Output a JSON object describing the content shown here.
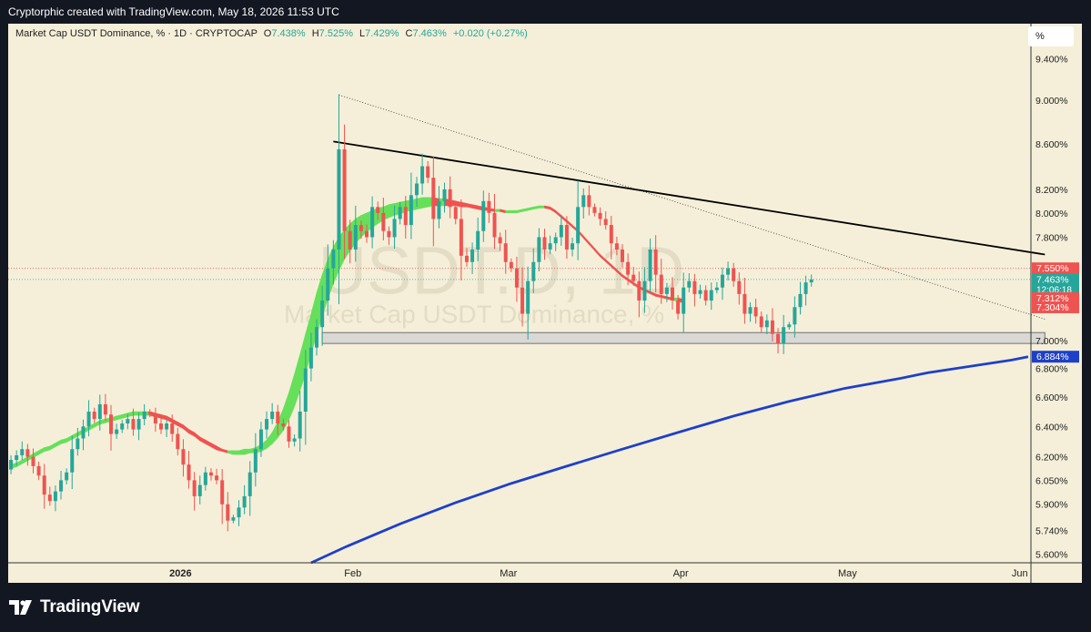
{
  "header": {
    "attribution": "Cryptorphic created with TradingView.com, May 18, 2026 11:53 UTC"
  },
  "legend": {
    "title": "Market Cap USDT Dominance, % · 1D · CRYPTOCAP",
    "o_label": "O",
    "o_value": "7.438%",
    "h_label": "H",
    "h_value": "7.525%",
    "l_label": "L",
    "l_value": "7.429%",
    "c_label": "C",
    "c_value": "7.463%",
    "change": "+0.020 (+0.27%)"
  },
  "watermark": {
    "symbol": "USDT.D, 1D",
    "description": "Market Cap USDT Dominance, %"
  },
  "scale_button": "%",
  "footer": {
    "brand": "TradingView",
    "logo_icon": "tradingview-logo-icon"
  },
  "colors": {
    "background": "#f5efd9",
    "up": "#26a69a",
    "down": "#ef5350",
    "ribbon_up": "#66e05a",
    "ribbon_down": "#ef5350",
    "ma200": "#1e40c8",
    "support_zone": "#d3d3d3",
    "resistance_line": "#000000",
    "current_price": "#26a69a"
  },
  "chart_data": {
    "type": "candlestick",
    "symbol": "USDT.D",
    "timeframe": "1D",
    "y_scale": "log",
    "ylim": [
      5.55,
      9.75
    ],
    "x_range": [
      "2025-12-01",
      "2026-06-03"
    ],
    "y_ticks": [
      "5.600%",
      "5.740%",
      "5.900%",
      "6.050%",
      "6.200%",
      "6.400%",
      "6.600%",
      "6.800%",
      "7.000%",
      "7.800%",
      "8.000%",
      "8.200%",
      "8.600%",
      "9.000%",
      "9.400%"
    ],
    "x_ticks": [
      {
        "date": "2026-01-01",
        "label": "2026",
        "bold": true
      },
      {
        "date": "2026-02-01",
        "label": "Feb"
      },
      {
        "date": "2026-03-01",
        "label": "Mar"
      },
      {
        "date": "2026-04-01",
        "label": "Apr"
      },
      {
        "date": "2026-05-01",
        "label": "May"
      },
      {
        "date": "2026-06-01",
        "label": "Jun"
      }
    ],
    "price_labels": [
      {
        "value": 7.55,
        "text": "7.550%",
        "color": "#ef5350"
      },
      {
        "value": 7.463,
        "text": "7.463%",
        "subtext": "12:06:18",
        "color": "#26a69a"
      },
      {
        "value": 7.312,
        "text": "7.312%",
        "color": "#ef5350"
      },
      {
        "value": 7.304,
        "text": "7.304%",
        "color": "#ef5350"
      },
      {
        "value": 6.884,
        "text": "6.884%",
        "color": "#1e40c8"
      }
    ],
    "closes": [
      6.18,
      6.21,
      6.25,
      6.2,
      6.14,
      6.08,
      5.96,
      5.92,
      5.98,
      6.05,
      6.1,
      6.25,
      6.32,
      6.4,
      6.5,
      6.45,
      6.55,
      6.48,
      6.35,
      6.38,
      6.42,
      6.45,
      6.38,
      6.45,
      6.5,
      6.48,
      6.42,
      6.38,
      6.42,
      6.35,
      6.25,
      6.15,
      6.05,
      5.95,
      6.02,
      6.1,
      6.08,
      6.05,
      5.9,
      5.8,
      5.82,
      5.88,
      5.95,
      6.1,
      6.25,
      6.38,
      6.45,
      6.5,
      6.42,
      6.4,
      6.3,
      6.32,
      6.5,
      6.8,
      6.95,
      7.1,
      7.3,
      7.55,
      7.7,
      8.55,
      7.85,
      7.7,
      7.9,
      7.85,
      7.8,
      8.05,
      8.0,
      7.85,
      7.8,
      7.95,
      8.05,
      7.9,
      8.15,
      8.25,
      8.4,
      8.3,
      7.95,
      8.1,
      8.2,
      8.05,
      7.95,
      7.65,
      7.6,
      7.7,
      7.85,
      8.1,
      8.0,
      7.8,
      7.75,
      7.6,
      7.55,
      7.4,
      7.2,
      7.45,
      7.6,
      7.8,
      7.7,
      7.75,
      7.8,
      7.9,
      7.7,
      7.75,
      8.05,
      8.15,
      8.05,
      8.0,
      7.95,
      7.9,
      7.75,
      7.7,
      7.6,
      7.5,
      7.45,
      7.3,
      7.45,
      7.7,
      7.5,
      7.35,
      7.4,
      7.3,
      7.2,
      7.4,
      7.45,
      7.35,
      7.38,
      7.3,
      7.38,
      7.4,
      7.5,
      7.55,
      7.45,
      7.35,
      7.2,
      7.25,
      7.18,
      7.1,
      7.15,
      7.05,
      6.98,
      7.1,
      7.12,
      7.25,
      7.35,
      7.44,
      7.463
    ],
    "ribbon_fast": [
      6.15,
      6.16,
      6.18,
      6.2,
      6.22,
      6.24,
      6.26,
      6.27,
      6.29,
      6.31,
      6.32,
      6.34,
      6.36,
      6.38,
      6.4,
      6.42,
      6.44,
      6.45,
      6.46,
      6.47,
      6.48,
      6.49,
      6.5,
      6.5,
      6.5,
      6.5,
      6.49,
      6.48,
      6.47,
      6.45,
      6.43,
      6.41,
      6.38,
      6.36,
      6.33,
      6.31,
      6.29,
      6.27,
      6.25,
      6.24,
      6.24,
      6.24,
      6.25,
      6.25,
      6.26,
      6.28,
      6.31,
      6.36,
      6.43,
      6.52,
      6.63,
      6.76,
      6.9,
      7.05,
      7.2,
      7.36,
      7.5,
      7.62,
      7.72,
      7.8,
      7.86,
      7.91,
      7.95,
      7.98,
      8.0,
      8.02,
      8.04,
      8.05,
      8.07,
      8.08,
      8.09,
      8.1,
      8.11,
      8.12,
      8.13,
      8.13,
      8.13,
      8.12,
      8.12,
      8.11,
      8.1,
      8.09,
      8.08,
      8.07,
      8.06,
      8.05,
      8.04,
      8.03,
      8.03,
      8.02,
      8.02,
      8.02,
      8.03,
      8.04,
      8.05,
      8.06,
      8.06,
      8.05,
      8.02,
      7.98,
      7.94,
      7.9,
      7.86,
      7.81,
      7.76,
      7.71,
      7.66,
      7.62,
      7.58,
      7.54,
      7.5,
      7.47,
      7.44,
      7.41,
      7.39,
      7.37,
      7.35,
      7.34,
      7.33,
      7.32,
      7.32,
      7.31
    ],
    "ribbon_slow": [
      6.14,
      6.15,
      6.17,
      6.19,
      6.21,
      6.23,
      6.25,
      6.26,
      6.28,
      6.3,
      6.31,
      6.33,
      6.35,
      6.37,
      6.39,
      6.41,
      6.43,
      6.44,
      6.45,
      6.46,
      6.47,
      6.48,
      6.49,
      6.49,
      6.49,
      6.49,
      6.48,
      6.47,
      6.46,
      6.44,
      6.42,
      6.4,
      6.37,
      6.35,
      6.32,
      6.3,
      6.28,
      6.26,
      6.25,
      6.24,
      6.23,
      6.23,
      6.23,
      6.24,
      6.24,
      6.25,
      6.27,
      6.3,
      6.34,
      6.39,
      6.46,
      6.55,
      6.66,
      6.78,
      6.92,
      7.06,
      7.2,
      7.33,
      7.45,
      7.55,
      7.64,
      7.71,
      7.77,
      7.82,
      7.86,
      7.9,
      7.93,
      7.96,
      7.98,
      8.0,
      8.01,
      8.03,
      8.04,
      8.05,
      8.06,
      8.07,
      8.08,
      8.08,
      8.08,
      8.08,
      8.08,
      8.07,
      8.07,
      8.06,
      8.05,
      8.04,
      8.04,
      8.03,
      8.03,
      8.02,
      8.02,
      8.02,
      8.03,
      8.04,
      8.05,
      8.06,
      8.06,
      8.05,
      8.02,
      7.98,
      7.94,
      7.9,
      7.86,
      7.81,
      7.76,
      7.71,
      7.66,
      7.62,
      7.58,
      7.54,
      7.5,
      7.47,
      7.44,
      7.41,
      7.39,
      7.37,
      7.35,
      7.34,
      7.33,
      7.32,
      7.31,
      7.3
    ],
    "ma200": [
      [
        54,
        5.55
      ],
      [
        60,
        5.64
      ],
      [
        70,
        5.78
      ],
      [
        80,
        5.91
      ],
      [
        90,
        6.03
      ],
      [
        100,
        6.14
      ],
      [
        110,
        6.25
      ],
      [
        120,
        6.36
      ],
      [
        130,
        6.47
      ],
      [
        140,
        6.57
      ],
      [
        150,
        6.66
      ],
      [
        160,
        6.73
      ],
      [
        165,
        6.77
      ],
      [
        170,
        6.8
      ],
      [
        175,
        6.83
      ],
      [
        180,
        6.86
      ],
      [
        183,
        6.884
      ]
    ],
    "resistance_line": [
      [
        58,
        8.62
      ],
      [
        186,
        7.66
      ]
    ],
    "dotted_trendline": [
      [
        59,
        9.05
      ],
      [
        186,
        7.16
      ]
    ],
    "support_zone": {
      "from": 56,
      "to": 186,
      "low": 6.98,
      "high": 7.06
    },
    "current_price_line": 7.463,
    "red_dotted_line": 7.55
  }
}
